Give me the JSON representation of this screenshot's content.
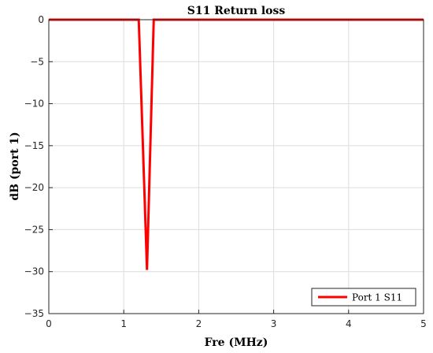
{
  "chart_data": {
    "type": "line",
    "title": "S11 Return loss",
    "xlabel": "Fre (MHz)",
    "ylabel": "dB (port 1)",
    "xlim": [
      0,
      5
    ],
    "ylim": [
      -35,
      0
    ],
    "xticks": [
      0,
      1,
      2,
      3,
      4,
      5
    ],
    "yticks": [
      0,
      -5,
      -10,
      -15,
      -20,
      -25,
      -30,
      -35
    ],
    "xtick_labels": [
      "0",
      "1",
      "2",
      "3",
      "4",
      "5"
    ],
    "ytick_labels": [
      "0",
      "−5",
      "−10",
      "−15",
      "−20",
      "−25",
      "−30",
      "−35"
    ],
    "grid": true,
    "legend_position": "bottom-right",
    "series": [
      {
        "name": "Port 1 S11",
        "color": "#ff0000",
        "x": [
          0,
          1.2,
          1.31,
          1.4,
          5
        ],
        "y": [
          0,
          0,
          -29.8,
          0,
          0
        ]
      }
    ]
  }
}
